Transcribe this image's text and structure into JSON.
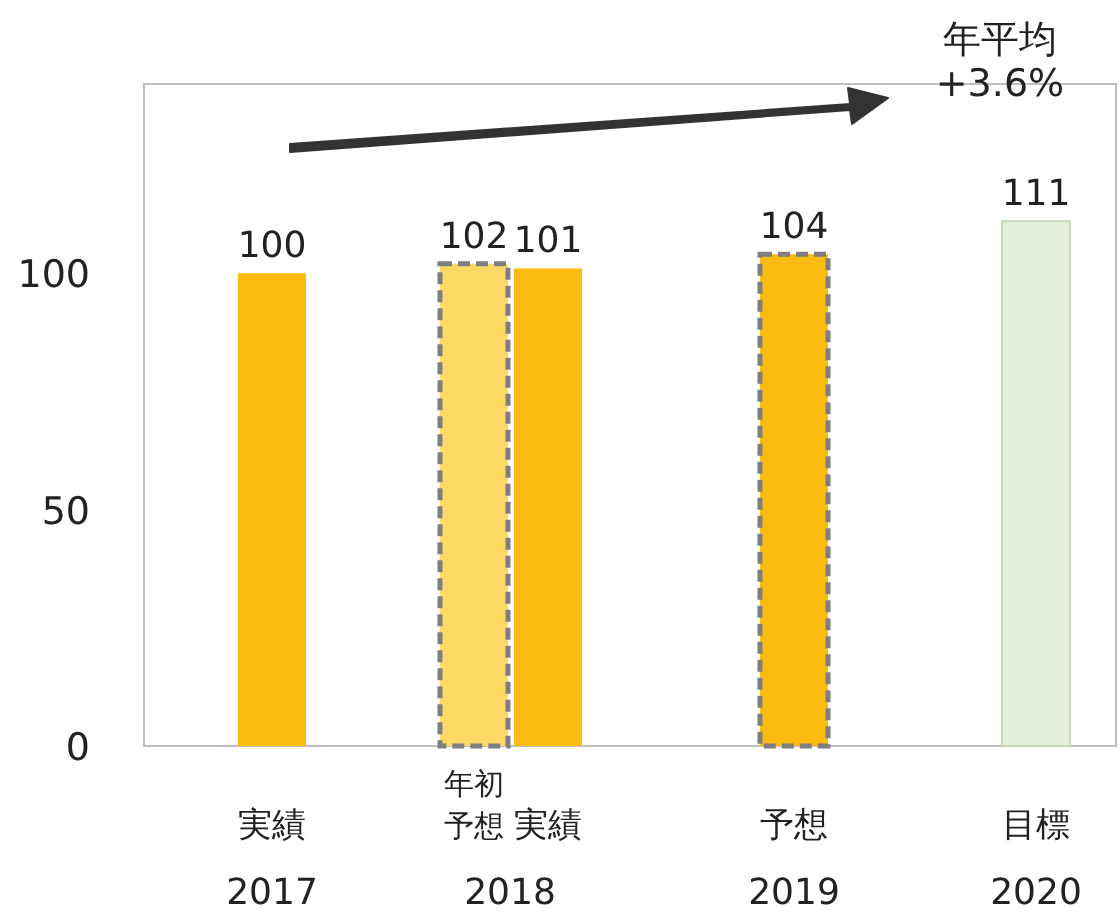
{
  "chart_data": {
    "type": "bar",
    "categories": [
      "実績",
      "年初予想",
      "実績",
      "予想",
      "目標"
    ],
    "series": [
      {
        "colors": [
          "#fbbb10",
          null,
          "#fbbb10",
          null,
          null
        ],
        "values": [
          100,
          null,
          101,
          null,
          null
        ],
        "value_labels": [
          "100",
          null,
          "101",
          null,
          null
        ]
      },
      {
        "colors": [
          null,
          "#ffd966",
          null,
          "#fbbb10",
          null
        ],
        "values": [
          null,
          102,
          null,
          104,
          null
        ],
        "value_labels": [
          null,
          "102",
          null,
          "104",
          null
        ],
        "line_style": "dashed"
      },
      {
        "colors": [
          null,
          null,
          null,
          null,
          "#e2efd9"
        ],
        "values": [
          null,
          null,
          null,
          null,
          111
        ],
        "value_labels": [
          null,
          null,
          null,
          null,
          "111"
        ]
      }
    ],
    "ylim": [
      0,
      140
    ],
    "yticks": [
      0,
      50,
      100
    ],
    "grid": false,
    "annotations": [
      "2017",
      "2018",
      "2019",
      "2020",
      "年平均\n+3.6%"
    ]
  }
}
